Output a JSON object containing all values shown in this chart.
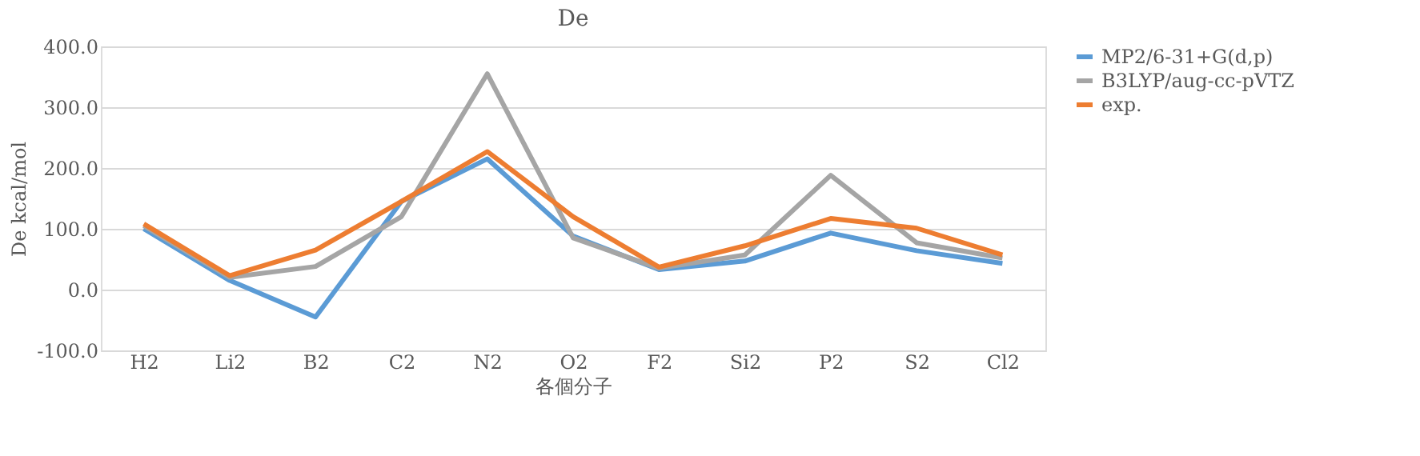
{
  "chart_data": {
    "type": "line",
    "title": "De",
    "xlabel": "各個分子",
    "ylabel": "De kcal/mol",
    "categories": [
      "H2",
      "Li2",
      "B2",
      "C2",
      "N2",
      "O2",
      "F2",
      "Si2",
      "P2",
      "S2",
      "Cl2"
    ],
    "series": [
      {
        "name": "MP2/6-31+G(d,p)",
        "color": "#5b9bd5",
        "values": [
          100,
          15,
          -45,
          145,
          215,
          88,
          33,
          47,
          93,
          64,
          43
        ]
      },
      {
        "name": "B3LYP/aug-cc-pVTZ",
        "color": "#a5a5a5",
        "values": [
          105,
          20,
          38,
          120,
          355,
          85,
          35,
          57,
          188,
          77,
          52
        ]
      },
      {
        "name": "exp.",
        "color": "#ed7d31",
        "values": [
          108,
          23,
          65,
          145,
          227,
          120,
          37,
          72,
          117,
          101,
          57
        ]
      }
    ],
    "ylim": [
      -100,
      400
    ],
    "yticks": [
      {
        "value": -100,
        "label": "-100.0"
      },
      {
        "value": 0,
        "label": "0.0"
      },
      {
        "value": 100,
        "label": "100.0"
      },
      {
        "value": 200,
        "label": "200.0"
      },
      {
        "value": 300,
        "label": "300.0"
      },
      {
        "value": 400,
        "label": "400.0"
      }
    ],
    "grid": "y",
    "legend": "right",
    "marker": "none",
    "line_style": "solid"
  }
}
